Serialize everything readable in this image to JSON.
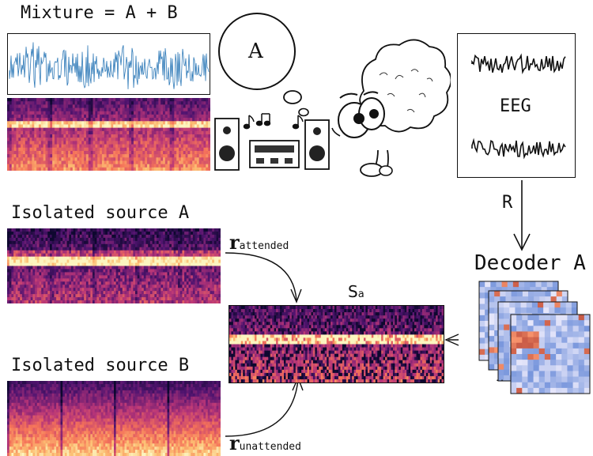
{
  "mixture": {
    "title": "Mixture = A + B"
  },
  "thought": {
    "label": "A"
  },
  "eeg": {
    "label": "EEG"
  },
  "arrow_r": {
    "label": "R"
  },
  "decoder": {
    "title": "Decoder A"
  },
  "sources": {
    "a_title": "Isolated source A",
    "b_title": "Isolated source B"
  },
  "correlations": {
    "attended_main": "r",
    "attended_sub": "attended",
    "unattended_main": "r",
    "unattended_sub": "unattended"
  },
  "sa": {
    "main": "S",
    "sub": "a"
  },
  "colors": {
    "waveform": "#2f7ab8",
    "spec_dark": "#1a0b3a",
    "spec_mid": "#b7366c",
    "spec_hot": "#fde8a8",
    "heat_cold": "#3b5fb5",
    "heat_hot": "#c33a2b"
  },
  "icons": [
    "speaker-icon",
    "music-notes-icon",
    "mixer-console-icon",
    "listener-character-icon",
    "thought-bubble-icon"
  ]
}
